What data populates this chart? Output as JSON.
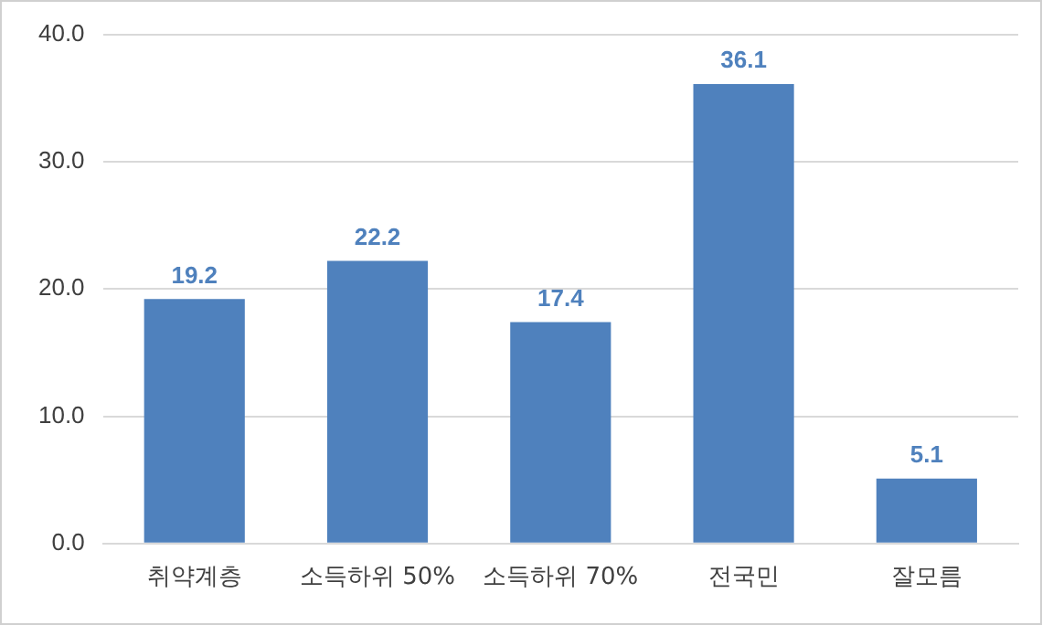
{
  "chart_data": {
    "type": "bar",
    "categories": [
      "취약계층",
      "소득하위 50%",
      "소득하위 70%",
      "전국민",
      "잘모름"
    ],
    "values": [
      19.2,
      22.2,
      17.4,
      36.1,
      5.1
    ],
    "color": "#4f81bd",
    "ylim": [
      0,
      40
    ],
    "yticks": [
      {
        "value": 0,
        "label": "0.0"
      },
      {
        "value": 10,
        "label": "10.0"
      },
      {
        "value": 20,
        "label": "20.0"
      },
      {
        "value": 30,
        "label": "30.0"
      },
      {
        "value": 40,
        "label": "40.0"
      }
    ],
    "grid": "y",
    "data_labels": true
  }
}
